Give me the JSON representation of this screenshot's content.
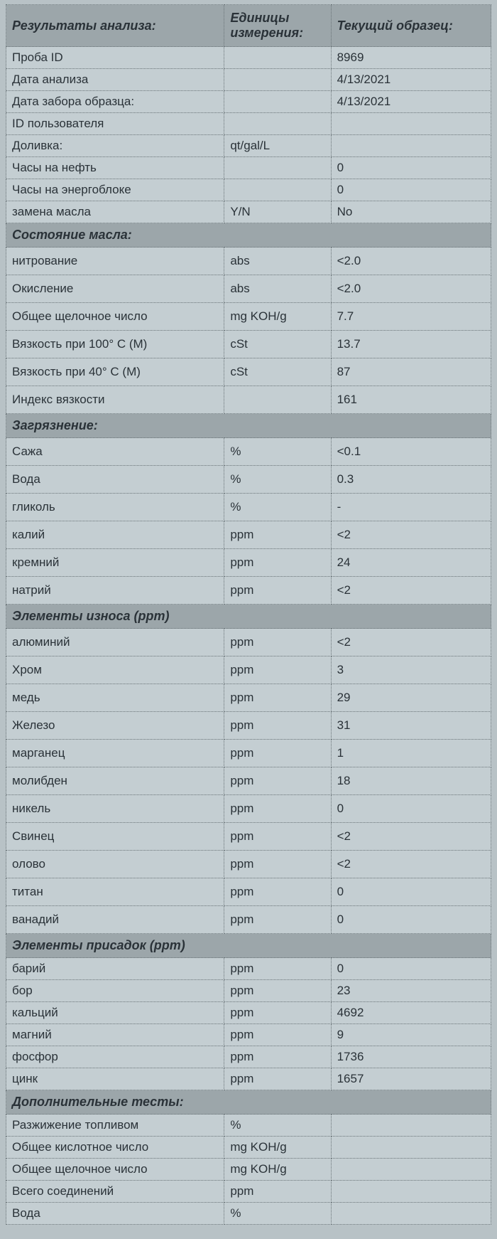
{
  "colors": {
    "page_bg": "#9da7ab",
    "sheet_bg": "#b8c2c6",
    "cell_bg": "#c4ced2",
    "section_bg": "#9ca6aa",
    "border": "#6a7478",
    "text": "#2a3238"
  },
  "header": {
    "col1": "Результаты анализа:",
    "col2": "Единицы измерения:",
    "col3": "Текущий образец:"
  },
  "sections": [
    {
      "title": null,
      "rows": [
        {
          "label": "Проба ID",
          "unit": "",
          "value": "8969"
        },
        {
          "label": "Дата анализа",
          "unit": "",
          "value": "4/13/2021"
        },
        {
          "label": "Дата забора образца:",
          "unit": "",
          "value": "4/13/2021"
        },
        {
          "label": "ID пользователя",
          "unit": "",
          "value": ""
        },
        {
          "label": "Доливка:",
          "unit": "qt/gal/L",
          "value": ""
        },
        {
          "label": "Часы на нефть",
          "unit": "",
          "value": "0"
        },
        {
          "label": "Часы на энергоблоке",
          "unit": "",
          "value": "0"
        },
        {
          "label": "замена масла",
          "unit": "Y/N",
          "value": "No"
        }
      ]
    },
    {
      "title": "Состояние масла:",
      "tall": true,
      "rows": [
        {
          "label": "нитрование",
          "unit": "abs",
          "value": "<2.0"
        },
        {
          "label": "Окисление",
          "unit": "abs",
          "value": "<2.0"
        },
        {
          "label": "Общее щелочное число",
          "unit": "mg KOH/g",
          "value": "7.7"
        },
        {
          "label": "Вязкость при 100° C (M)",
          "unit": "cSt",
          "value": "13.7"
        },
        {
          "label": "Вязкость при 40° C (M)",
          "unit": "cSt",
          "value": "87"
        },
        {
          "label": "Индекс вязкости",
          "unit": "",
          "value": "161"
        }
      ]
    },
    {
      "title": "Загрязнение:",
      "tall": true,
      "rows": [
        {
          "label": "Сажа",
          "unit": "%",
          "value": "<0.1"
        },
        {
          "label": "Вода",
          "unit": "%",
          "value": "0.3"
        },
        {
          "label": "гликоль",
          "unit": "%",
          "value": "-"
        },
        {
          "label": "калий",
          "unit": "ppm",
          "value": "<2"
        },
        {
          "label": "кремний",
          "unit": "ppm",
          "value": "24"
        },
        {
          "label": "натрий",
          "unit": "ppm",
          "value": "<2"
        }
      ]
    },
    {
      "title": "Элементы износа (ppm)",
      "tall": true,
      "rows": [
        {
          "label": "алюминий",
          "unit": "ppm",
          "value": "<2"
        },
        {
          "label": "Хром",
          "unit": "ppm",
          "value": "3"
        },
        {
          "label": "медь",
          "unit": "ppm",
          "value": "29"
        },
        {
          "label": "Железо",
          "unit": "ppm",
          "value": "31"
        },
        {
          "label": "марганец",
          "unit": "ppm",
          "value": "1"
        },
        {
          "label": "молибден",
          "unit": "ppm",
          "value": "18"
        },
        {
          "label": "никель",
          "unit": "ppm",
          "value": "0"
        },
        {
          "label": "Свинец",
          "unit": "ppm",
          "value": "<2"
        },
        {
          "label": "олово",
          "unit": "ppm",
          "value": "<2"
        },
        {
          "label": "титан",
          "unit": "ppm",
          "value": "0"
        },
        {
          "label": "ванадий",
          "unit": "ppm",
          "value": "0"
        }
      ]
    },
    {
      "title": "Элементы присадок (ppm)",
      "rows": [
        {
          "label": "барий",
          "unit": "ppm",
          "value": "0"
        },
        {
          "label": "бор",
          "unit": "ppm",
          "value": "23"
        },
        {
          "label": "кальций",
          "unit": "ppm",
          "value": "4692"
        },
        {
          "label": "магний",
          "unit": "ppm",
          "value": "9"
        },
        {
          "label": "фосфор",
          "unit": "ppm",
          "value": "1736"
        },
        {
          "label": "цинк",
          "unit": "ppm",
          "value": "1657"
        }
      ]
    },
    {
      "title": "Дополнительные тесты:",
      "rows": [
        {
          "label": "Разжижение топливом",
          "unit": "%",
          "value": ""
        },
        {
          "label": "Общее кислотное число",
          "unit": "mg KOH/g",
          "value": ""
        },
        {
          "label": "Общее щелочное число",
          "unit": "mg KOH/g",
          "value": ""
        },
        {
          "label": "Всего соединений",
          "unit": "ppm",
          "value": ""
        },
        {
          "label": "Вода",
          "unit": "%",
          "value": ""
        }
      ]
    }
  ]
}
